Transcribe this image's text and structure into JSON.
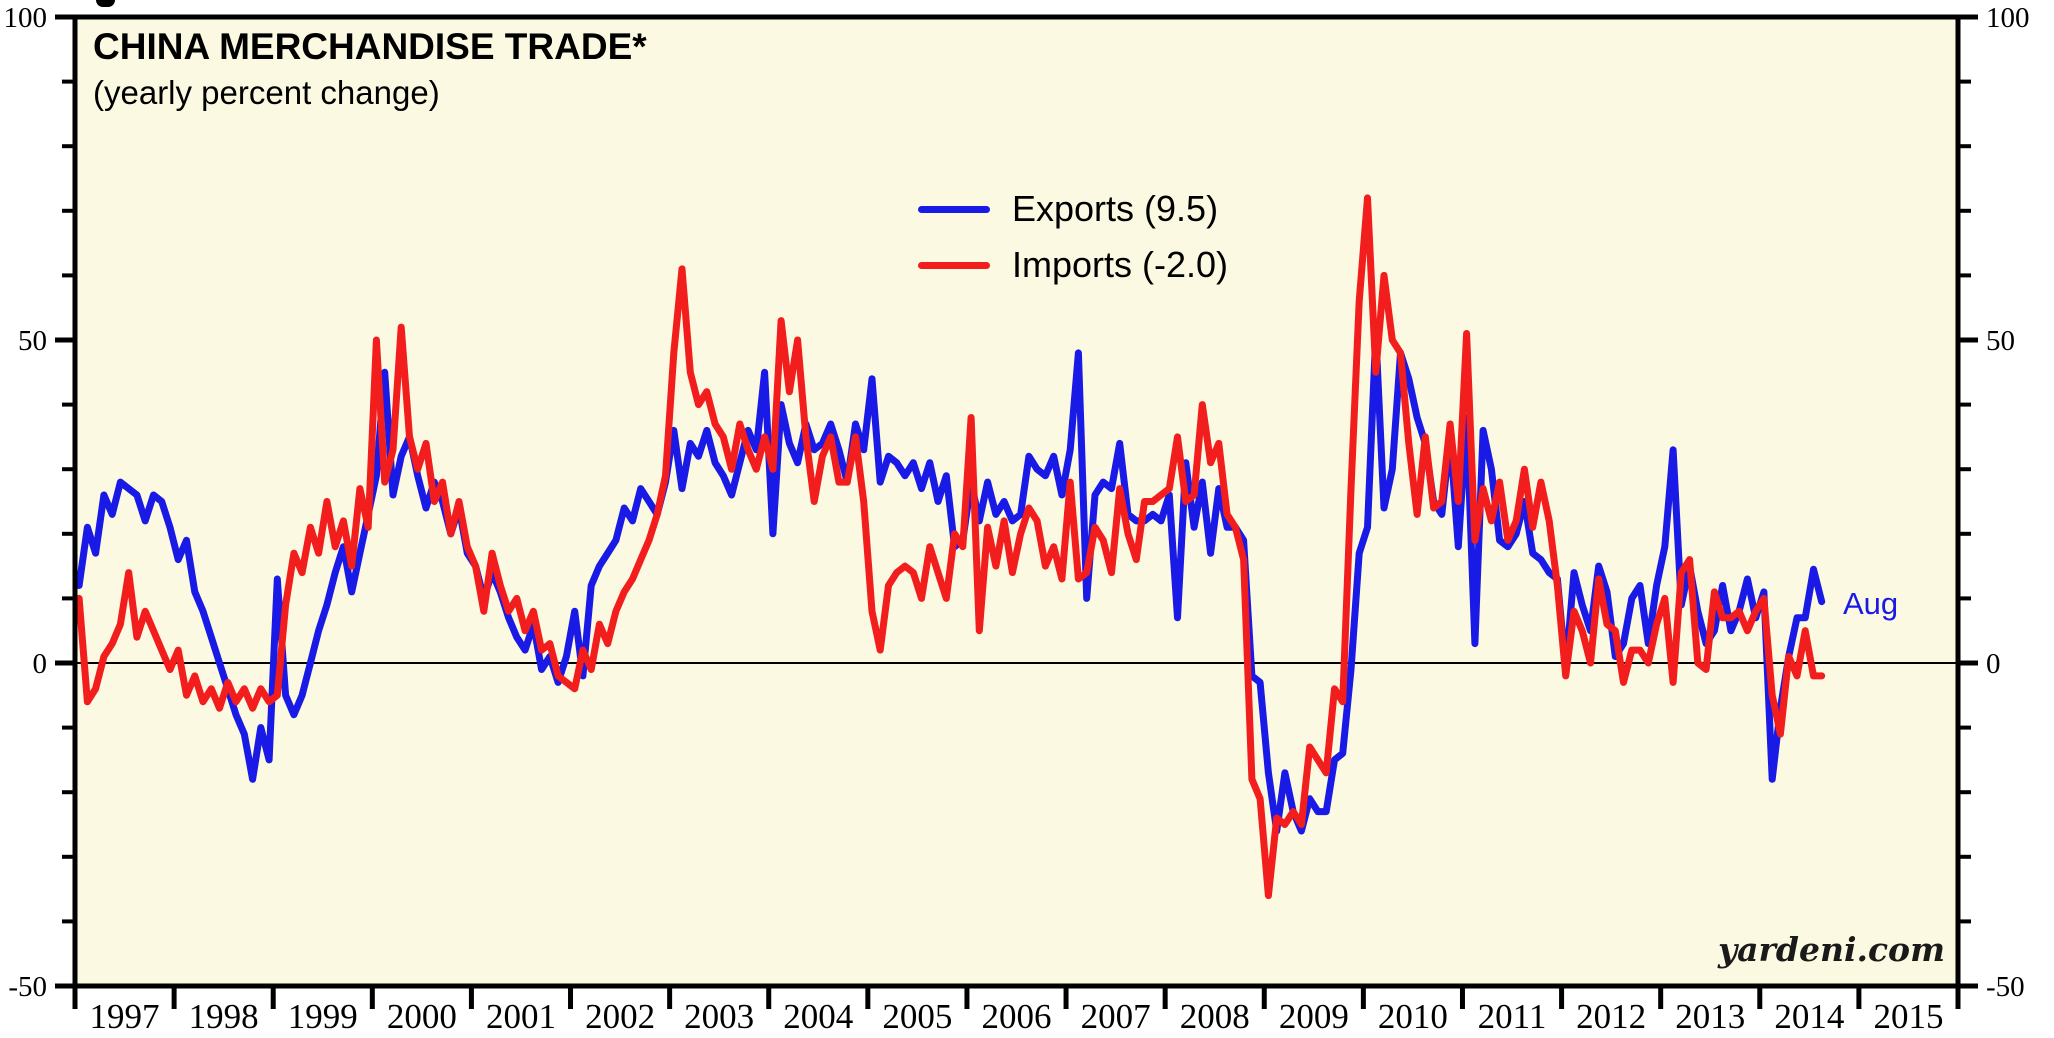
{
  "header": {
    "title": "CHINA MERCHANDISE TRADE*",
    "subtitle": "(yearly percent change)"
  },
  "legend": {
    "items": [
      {
        "label": "Exports (9.5)",
        "color": "#1a1ae6",
        "series": "exports"
      },
      {
        "label": "Imports (-2.0)",
        "color": "#f21d1d",
        "series": "imports"
      }
    ]
  },
  "annotations": {
    "last_point_label": "Aug",
    "watermark": "yardeni.com"
  },
  "colors": {
    "page_background": "#ffffff",
    "plot_background": "#fbf9e1",
    "axis_black": "#000000",
    "exports_blue": "#1a1ae6",
    "imports_red": "#f21d1d"
  },
  "chart_data": {
    "type": "line",
    "title": "CHINA MERCHANDISE TRADE*",
    "subtitle": "(yearly percent change)",
    "xlabel": "",
    "ylabel": "",
    "ylim": [
      -50,
      100
    ],
    "ytick_major": [
      100,
      50,
      0,
      -50
    ],
    "ytick_minor_step": 10,
    "grid": "zero-line-only",
    "legend_position": "inside-top-center",
    "x_axis_years": [
      "1997",
      "1998",
      "1999",
      "2000",
      "2001",
      "2002",
      "2003",
      "2004",
      "2005",
      "2006",
      "2007",
      "2008",
      "2009",
      "2010",
      "2011",
      "2012",
      "2013",
      "2014",
      "2015"
    ],
    "x_range_years": [
      1997,
      2016
    ],
    "x_start": "1997-01",
    "x_end": "2014-08",
    "frequency": "monthly",
    "series": [
      {
        "name": "Exports (9.5)",
        "color": "#1a1ae6",
        "latest_value": 9.5,
        "values": [
          12,
          21,
          17,
          26,
          23,
          28,
          27,
          26,
          22,
          26,
          25,
          21,
          16,
          19,
          11,
          8,
          4,
          0,
          -4,
          -8,
          -11,
          -18,
          -10,
          -15,
          13,
          -5,
          -8,
          -5,
          0,
          5,
          9,
          14,
          18,
          11,
          17,
          23,
          29,
          45,
          26,
          32,
          35,
          29,
          24,
          28,
          25,
          20,
          24,
          17,
          15,
          10,
          14,
          11,
          7,
          4,
          2,
          6,
          -1,
          1,
          -3,
          1,
          8,
          -2,
          12,
          15,
          17,
          19,
          24,
          22,
          27,
          25,
          23,
          28,
          36,
          27,
          34,
          32,
          36,
          31,
          29,
          26,
          31,
          36,
          33,
          45,
          20,
          40,
          34,
          31,
          37,
          33,
          34,
          37,
          33,
          28,
          37,
          33,
          44,
          28,
          32,
          31,
          29,
          31,
          27,
          31,
          25,
          29,
          18,
          19,
          28,
          22,
          28,
          23,
          25,
          22,
          23,
          32,
          30,
          29,
          32,
          26,
          33,
          48,
          10,
          26,
          28,
          27,
          34,
          23,
          22,
          22,
          23,
          22,
          26,
          7,
          31,
          21,
          28,
          17,
          27,
          21,
          21,
          19,
          -2,
          -3,
          -17,
          -26,
          -17,
          -23,
          -26,
          -21,
          -23,
          -23,
          -15,
          -14,
          -1,
          17,
          21,
          51,
          24,
          30,
          48,
          44,
          38,
          34,
          25,
          23,
          35,
          18,
          38,
          3,
          36,
          30,
          19,
          18,
          20,
          25,
          17,
          16,
          14,
          13,
          -1,
          14,
          9,
          5,
          15,
          11,
          1,
          3,
          10,
          12,
          3,
          12,
          18,
          33,
          9,
          15,
          8,
          3,
          5,
          12,
          5,
          8,
          13,
          7,
          11,
          -18,
          -7,
          1,
          7,
          7,
          14.5,
          9.5
        ]
      },
      {
        "name": "Imports (-2.0)",
        "color": "#f21d1d",
        "latest_value": -2.0,
        "values": [
          10,
          -6,
          -4,
          1,
          3,
          6,
          14,
          4,
          8,
          5,
          2,
          -1,
          2,
          -5,
          -2,
          -6,
          -4,
          -7,
          -3,
          -6,
          -4,
          -7,
          -4,
          -6,
          -5,
          9,
          17,
          14,
          21,
          17,
          25,
          18,
          22,
          15,
          27,
          21,
          50,
          28,
          33,
          52,
          35,
          30,
          34,
          25,
          28,
          20,
          25,
          18,
          15,
          8,
          17,
          12,
          8,
          10,
          5,
          8,
          2,
          3,
          -2,
          -3,
          -4,
          2,
          -1,
          6,
          3,
          8,
          11,
          13,
          16,
          19,
          23,
          29,
          48,
          61,
          45,
          40,
          42,
          37,
          35,
          30,
          37,
          33,
          30,
          35,
          30,
          53,
          42,
          50,
          35,
          25,
          32,
          35,
          28,
          28,
          35,
          25,
          8,
          2,
          12,
          14,
          15,
          14,
          10,
          18,
          14,
          10,
          20,
          18,
          38,
          5,
          21,
          15,
          22,
          14,
          20,
          24,
          22,
          15,
          18,
          13,
          28,
          13,
          14,
          21,
          19,
          14,
          27,
          20,
          16,
          25,
          25,
          26,
          27,
          35,
          25,
          26,
          40,
          31,
          34,
          23,
          21,
          16,
          -18,
          -21,
          -36,
          -24,
          -25,
          -23,
          -25,
          -13,
          -15,
          -17,
          -4,
          -6,
          27,
          56,
          72,
          45,
          60,
          50,
          48,
          34,
          23,
          35,
          24,
          25,
          37,
          25,
          51,
          19,
          27,
          22,
          28,
          19,
          22,
          30,
          21,
          28,
          22,
          12,
          -2,
          8,
          5,
          0,
          13,
          6,
          5,
          -3,
          2,
          2,
          0,
          6,
          10,
          -3,
          14,
          16,
          0,
          -1,
          11,
          7,
          7,
          8,
          5,
          8,
          10,
          -5,
          -11,
          1,
          -2,
          5,
          -2,
          -2
        ]
      }
    ]
  }
}
